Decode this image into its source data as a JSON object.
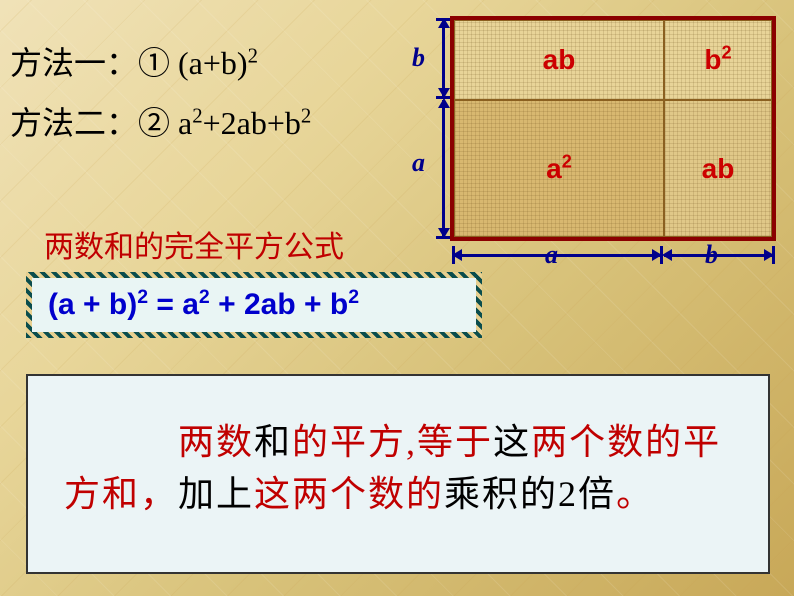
{
  "method1": {
    "prefix": "方法一：① ",
    "expr_base": "(a+b)",
    "expr_sup": "2"
  },
  "method2": {
    "prefix": "方法二：② ",
    "t1": "a",
    "s1": "2",
    "t2": "+2ab+b",
    "s2": "2"
  },
  "red_title": "两数和的完全平方公式",
  "formula": {
    "p1": "(a + b)",
    "s1": "2",
    "p2": " = a",
    "s2": "2",
    "p3": " + 2ab + b",
    "s3": "2"
  },
  "explain": {
    "indent": "　　　",
    "w1": "两数",
    "w2": "和",
    "w3": "的平方,等于",
    "w4": "这",
    "w5": "两个数的",
    "w6": "平方和，",
    "w7": "加上",
    "w8": "这两个数的",
    "w9": "乘积的2倍",
    "w10": "。"
  },
  "diagram": {
    "cells": {
      "ab1": "ab",
      "b2_base": "b",
      "b2_sup": "2",
      "a2_base": "a",
      "a2_sup": "2",
      "ab2": "ab"
    },
    "labels": {
      "b_left": "b",
      "a_left": "a",
      "a_bottom": "a",
      "b_bottom": "b"
    },
    "colors": {
      "border": "#8b0000",
      "arrow": "#00008b",
      "cell_text": "#cc0000"
    }
  }
}
